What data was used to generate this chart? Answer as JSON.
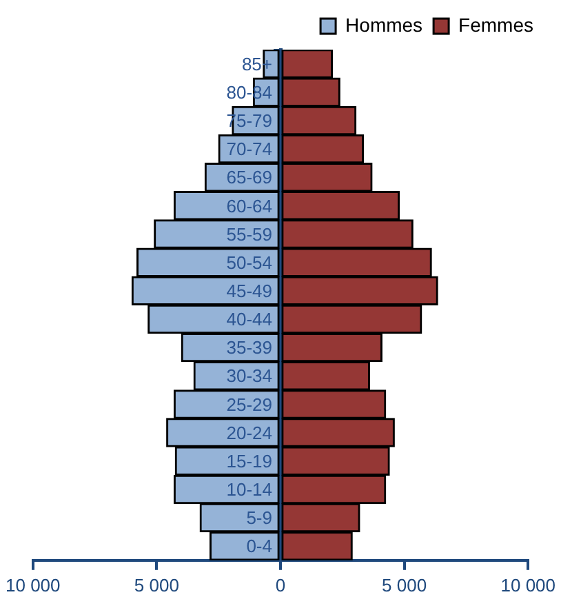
{
  "chart_data": {
    "type": "bar",
    "orientation": "horizontal",
    "stacked": true,
    "categories": [
      "85+",
      "80-84",
      "75-79",
      "70-74",
      "65-69",
      "60-64",
      "55-59",
      "50-54",
      "45-49",
      "40-44",
      "35-39",
      "30-34",
      "25-29",
      "20-24",
      "15-19",
      "10-14",
      "5-9",
      "0-4"
    ],
    "series": [
      {
        "name": "Hommes",
        "color": "#95b3d7",
        "values": [
          -700,
          -1100,
          -1950,
          -2500,
          -3050,
          -4300,
          -5100,
          -5800,
          -6000,
          -5350,
          -4000,
          -3500,
          -4300,
          -4600,
          -4250,
          -4300,
          -3250,
          -2850
        ]
      },
      {
        "name": "Femmes",
        "color": "#953735",
        "values": [
          2100,
          2400,
          3050,
          3350,
          3700,
          4800,
          5350,
          6100,
          6350,
          5700,
          4100,
          3600,
          4250,
          4600,
          4400,
          4250,
          3200,
          2900
        ]
      }
    ],
    "xlim": [
      -10000,
      10000
    ],
    "xticks": [
      {
        "value": -10000,
        "label": "10 000"
      },
      {
        "value": -5000,
        "label": "5 000"
      },
      0,
      {
        "value": 5000,
        "label": "5 000"
      },
      {
        "value": 10000,
        "label": "10 000"
      }
    ],
    "legend": "top right"
  }
}
